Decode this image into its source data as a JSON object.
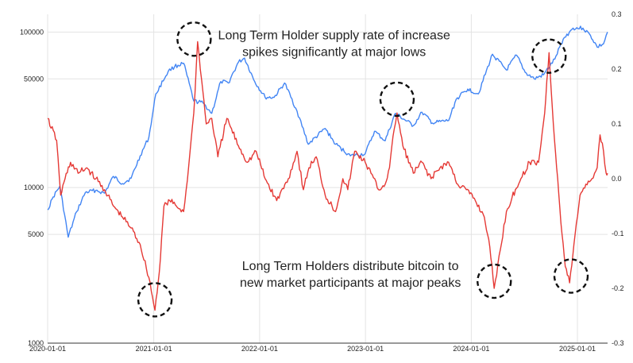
{
  "chart_data": {
    "type": "line",
    "title": "",
    "xlabel": "",
    "ylabel": "",
    "x_ticks": [
      "2020-01-01",
      "2021-01-01",
      "2022-01-01",
      "2023-01-01",
      "2024-01-01",
      "2025-01-01"
    ],
    "x_range": [
      "2020-01-01",
      "2025-04-15"
    ],
    "left_axis": {
      "scale": "log",
      "range": [
        1000,
        130000
      ],
      "ticks": [
        1000,
        5000,
        10000,
        50000,
        100000
      ],
      "tick_labels": [
        "1000",
        "5000",
        "10000",
        "50000",
        "100000"
      ]
    },
    "right_axis": {
      "scale": "linear",
      "range": [
        -0.3,
        0.3
      ],
      "ticks": [
        -0.3,
        -0.2,
        -0.1,
        0.0,
        0.1,
        0.2,
        0.3
      ],
      "tick_labels": [
        "-0.3",
        "-0.2",
        "-0.1",
        "0.0",
        "0.1",
        "0.2",
        "0.3"
      ]
    },
    "grid": true,
    "legend": "none",
    "series": [
      {
        "axis": "left",
        "color": "#4285f4",
        "points": [
          [
            "2020-01-01",
            7200
          ],
          [
            "2020-01-20",
            8700
          ],
          [
            "2020-02-12",
            10200
          ],
          [
            "2020-03-12",
            4800
          ],
          [
            "2020-04-10",
            7000
          ],
          [
            "2020-05-10",
            9300
          ],
          [
            "2020-06-15",
            9600
          ],
          [
            "2020-07-15",
            9200
          ],
          [
            "2020-08-15",
            11800
          ],
          [
            "2020-09-15",
            10600
          ],
          [
            "2020-10-15",
            11500
          ],
          [
            "2020-11-15",
            16000
          ],
          [
            "2020-12-15",
            21000
          ],
          [
            "2021-01-08",
            40000
          ],
          [
            "2021-02-20",
            56000
          ],
          [
            "2021-03-14",
            60000
          ],
          [
            "2021-04-14",
            63000
          ],
          [
            "2021-05-19",
            36000
          ],
          [
            "2021-06-20",
            35000
          ],
          [
            "2021-07-20",
            30000
          ],
          [
            "2021-08-20",
            48000
          ],
          [
            "2021-09-15",
            47000
          ],
          [
            "2021-10-20",
            64000
          ],
          [
            "2021-11-10",
            68000
          ],
          [
            "2021-12-15",
            48000
          ],
          [
            "2022-01-20",
            38000
          ],
          [
            "2022-02-20",
            38000
          ],
          [
            "2022-03-28",
            47000
          ],
          [
            "2022-05-10",
            31000
          ],
          [
            "2022-06-18",
            19000
          ],
          [
            "2022-08-15",
            24000
          ],
          [
            "2022-09-20",
            19000
          ],
          [
            "2022-11-10",
            16000
          ],
          [
            "2022-12-31",
            16500
          ],
          [
            "2023-02-01",
            23000
          ],
          [
            "2023-03-10",
            20000
          ],
          [
            "2023-04-14",
            30000
          ],
          [
            "2023-06-15",
            25000
          ],
          [
            "2023-07-15",
            30500
          ],
          [
            "2023-08-20",
            26000
          ],
          [
            "2023-10-15",
            27000
          ],
          [
            "2023-11-10",
            37000
          ],
          [
            "2023-12-20",
            43000
          ],
          [
            "2024-01-25",
            40000
          ],
          [
            "2024-03-14",
            72000
          ],
          [
            "2024-05-01",
            57000
          ],
          [
            "2024-06-05",
            71000
          ],
          [
            "2024-07-05",
            55000
          ],
          [
            "2024-08-05",
            50000
          ],
          [
            "2024-09-06",
            53000
          ],
          [
            "2024-10-15",
            67000
          ],
          [
            "2024-11-13",
            90000
          ],
          [
            "2024-12-17",
            106000
          ],
          [
            "2025-01-20",
            106000
          ],
          [
            "2025-02-15",
            95000
          ],
          [
            "2025-03-10",
            80000
          ],
          [
            "2025-04-01",
            84000
          ],
          [
            "2025-04-15",
            100000
          ]
        ]
      },
      {
        "axis": "right",
        "color": "#e53935",
        "points": [
          [
            "2020-01-01",
            0.11
          ],
          [
            "2020-02-01",
            0.07
          ],
          [
            "2020-02-15",
            -0.03
          ],
          [
            "2020-03-01",
            0.0
          ],
          [
            "2020-03-20",
            0.03
          ],
          [
            "2020-04-15",
            0.01
          ],
          [
            "2020-05-15",
            0.02
          ],
          [
            "2020-06-15",
            0.0
          ],
          [
            "2020-07-15",
            -0.02
          ],
          [
            "2020-08-15",
            -0.05
          ],
          [
            "2020-09-15",
            -0.07
          ],
          [
            "2020-10-15",
            -0.09
          ],
          [
            "2020-11-15",
            -0.12
          ],
          [
            "2020-12-15",
            -0.18
          ],
          [
            "2021-01-05",
            -0.24
          ],
          [
            "2021-01-20",
            -0.17
          ],
          [
            "2021-02-05",
            -0.05
          ],
          [
            "2021-02-25",
            -0.04
          ],
          [
            "2021-03-20",
            -0.05
          ],
          [
            "2021-04-14",
            -0.06
          ],
          [
            "2021-05-01",
            0.02
          ],
          [
            "2021-05-19",
            0.12
          ],
          [
            "2021-06-01",
            0.25
          ],
          [
            "2021-06-15",
            0.18
          ],
          [
            "2021-07-01",
            0.1
          ],
          [
            "2021-07-20",
            0.11
          ],
          [
            "2021-08-10",
            0.04
          ],
          [
            "2021-09-10",
            0.11
          ],
          [
            "2021-10-20",
            0.06
          ],
          [
            "2021-11-20",
            0.03
          ],
          [
            "2021-12-20",
            0.05
          ],
          [
            "2022-01-20",
            0.0
          ],
          [
            "2022-03-01",
            -0.04
          ],
          [
            "2022-04-10",
            0.0
          ],
          [
            "2022-05-10",
            0.05
          ],
          [
            "2022-06-01",
            -0.02
          ],
          [
            "2022-06-20",
            0.02
          ],
          [
            "2022-07-15",
            0.04
          ],
          [
            "2022-08-15",
            -0.03
          ],
          [
            "2022-09-20",
            -0.06
          ],
          [
            "2022-10-15",
            0.0
          ],
          [
            "2022-11-01",
            -0.02
          ],
          [
            "2022-11-25",
            0.05
          ],
          [
            "2022-12-31",
            0.03
          ],
          [
            "2023-01-20",
            0.01
          ],
          [
            "2023-02-15",
            -0.02
          ],
          [
            "2023-03-10",
            -0.01
          ],
          [
            "2023-03-25",
            0.02
          ],
          [
            "2023-04-10",
            0.09
          ],
          [
            "2023-04-20",
            0.12
          ],
          [
            "2023-05-10",
            0.06
          ],
          [
            "2023-06-15",
            0.01
          ],
          [
            "2023-07-15",
            0.03
          ],
          [
            "2023-08-15",
            0.0
          ],
          [
            "2023-09-15",
            0.02
          ],
          [
            "2023-10-15",
            0.03
          ],
          [
            "2023-11-15",
            -0.01
          ],
          [
            "2023-12-15",
            -0.02
          ],
          [
            "2024-01-15",
            -0.04
          ],
          [
            "2024-02-15",
            -0.07
          ],
          [
            "2024-03-01",
            -0.11
          ],
          [
            "2024-03-20",
            -0.2
          ],
          [
            "2024-04-10",
            -0.13
          ],
          [
            "2024-05-01",
            -0.06
          ],
          [
            "2024-06-01",
            -0.02
          ],
          [
            "2024-06-20",
            0.0
          ],
          [
            "2024-07-20",
            0.03
          ],
          [
            "2024-08-20",
            0.03
          ],
          [
            "2024-09-10",
            0.12
          ],
          [
            "2024-09-25",
            0.23
          ],
          [
            "2024-10-10",
            0.1
          ],
          [
            "2024-10-25",
            0.0
          ],
          [
            "2024-11-05",
            -0.08
          ],
          [
            "2024-11-20",
            -0.16
          ],
          [
            "2024-12-05",
            -0.19
          ],
          [
            "2024-12-20",
            -0.12
          ],
          [
            "2025-01-10",
            -0.03
          ],
          [
            "2025-01-30",
            -0.01
          ],
          [
            "2025-02-20",
            0.0
          ],
          [
            "2025-03-10",
            0.02
          ],
          [
            "2025-03-20",
            0.08
          ],
          [
            "2025-04-01",
            0.05
          ],
          [
            "2025-04-10",
            0.01
          ],
          [
            "2025-04-15",
            0.01
          ]
        ]
      }
    ],
    "annotations": [
      {
        "text": "Long Term Holder supply rate of increase",
        "date": "2022-09-15",
        "value": 90000
      },
      {
        "text": "spikes significantly at major lows",
        "date": "2022-09-15",
        "value": 70000
      },
      {
        "text": "Long Term Holders distribute bitcoin to",
        "date": "2022-11-10",
        "value": 2950
      },
      {
        "text": "new market participants at major peaks",
        "date": "2022-11-10",
        "value": 2300
      }
    ],
    "highlight_circles": [
      {
        "date": "2021-01-05",
        "value": 1900
      },
      {
        "date": "2021-05-20",
        "value": 90000
      },
      {
        "date": "2023-04-20",
        "value": 37000
      },
      {
        "date": "2024-09-25",
        "value": 70000
      },
      {
        "date": "2024-03-20",
        "value": 2500
      },
      {
        "date": "2024-12-10",
        "value": 2700
      }
    ]
  }
}
